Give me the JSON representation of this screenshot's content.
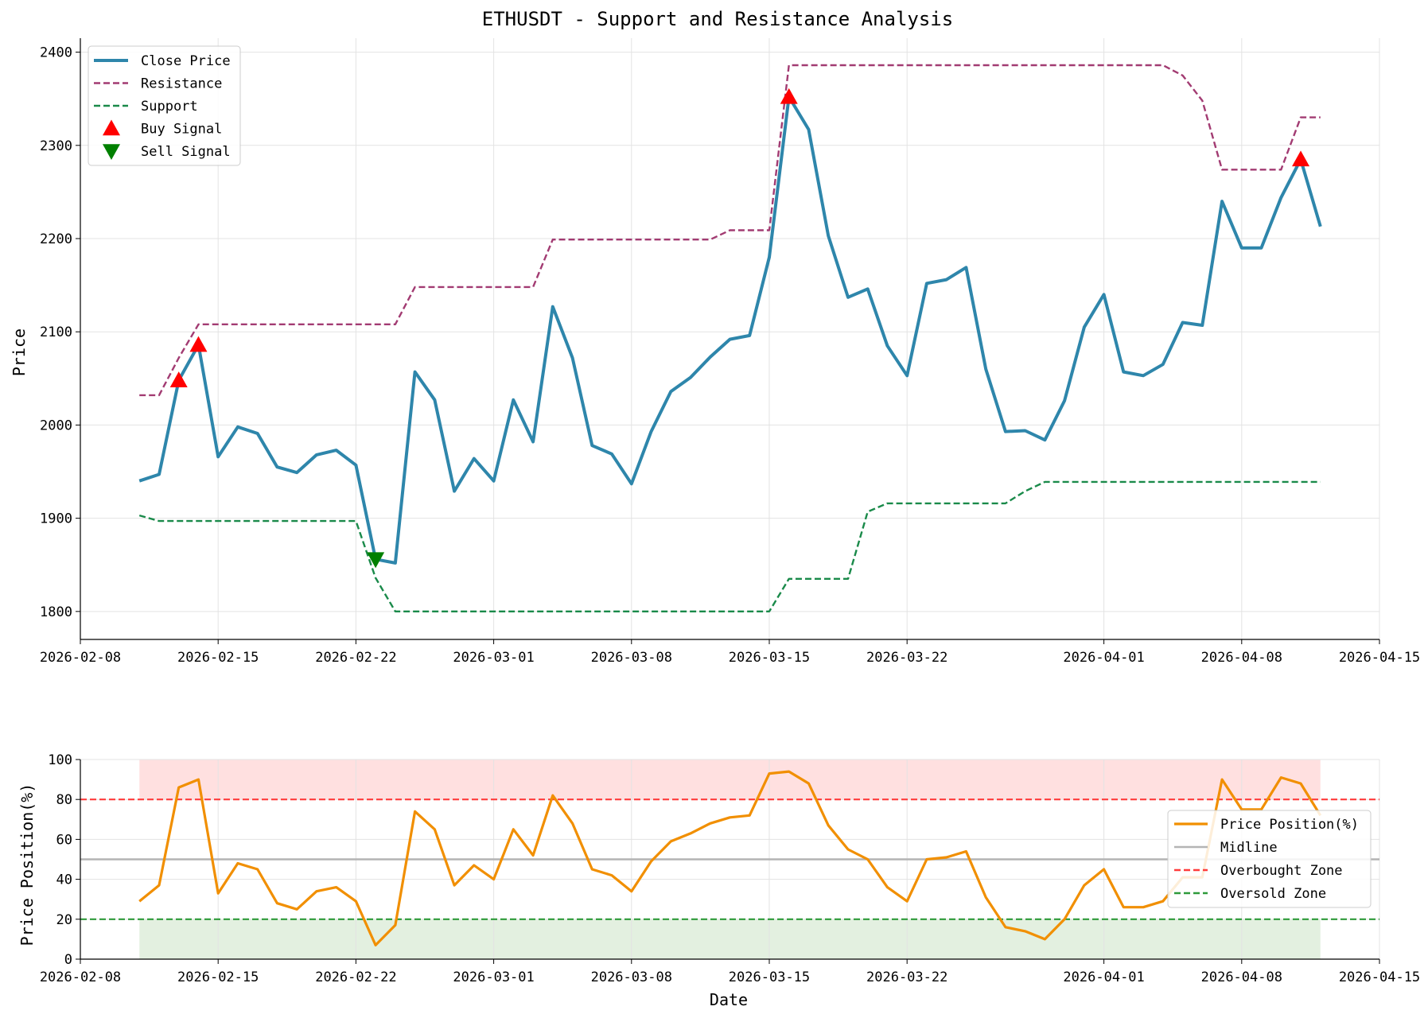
{
  "chart_data": [
    {
      "type": "line",
      "title": "ETHUSDT - Support and Resistance Analysis",
      "xlabel": "",
      "ylabel": "Price",
      "x_tick_labels": [
        "2026-02-08",
        "2026-02-15",
        "2026-02-22",
        "2026-03-01",
        "2026-03-08",
        "2026-03-15",
        "2026-03-22",
        "2026-04-01",
        "2026-04-08",
        "2026-04-15"
      ],
      "y_tick_labels": [
        "1800",
        "1900",
        "2000",
        "2100",
        "2200",
        "2300",
        "2400"
      ],
      "xlim": [
        "2026-02-08",
        "2026-04-15"
      ],
      "ylim": [
        1770,
        2415
      ],
      "grid": true,
      "legend_position": "top-left",
      "x": [
        "2026-02-11",
        "2026-02-12",
        "2026-02-13",
        "2026-02-14",
        "2026-02-15",
        "2026-02-16",
        "2026-02-17",
        "2026-02-18",
        "2026-02-19",
        "2026-02-20",
        "2026-02-21",
        "2026-02-22",
        "2026-02-23",
        "2026-02-24",
        "2026-02-25",
        "2026-02-26",
        "2026-02-27",
        "2026-02-28",
        "2026-03-01",
        "2026-03-02",
        "2026-03-03",
        "2026-03-04",
        "2026-03-05",
        "2026-03-06",
        "2026-03-07",
        "2026-03-08",
        "2026-03-09",
        "2026-03-10",
        "2026-03-11",
        "2026-03-12",
        "2026-03-13",
        "2026-03-14",
        "2026-03-15",
        "2026-03-16",
        "2026-03-17",
        "2026-03-18",
        "2026-03-19",
        "2026-03-20",
        "2026-03-21",
        "2026-03-22",
        "2026-03-23",
        "2026-03-24",
        "2026-03-25",
        "2026-03-26",
        "2026-03-27",
        "2026-03-28",
        "2026-03-29",
        "2026-03-30",
        "2026-03-31",
        "2026-04-01",
        "2026-04-02",
        "2026-04-03",
        "2026-04-04",
        "2026-04-05",
        "2026-04-06",
        "2026-04-07",
        "2026-04-08",
        "2026-04-09",
        "2026-04-10",
        "2026-04-11",
        "2026-04-12"
      ],
      "series": [
        {
          "name": "Close Price",
          "color": "#2e86ab",
          "style": "solid",
          "values": [
            1940,
            1947,
            2048,
            2086,
            1966,
            1998,
            1991,
            1955,
            1949,
            1968,
            1973,
            1957,
            1856,
            1852,
            2057,
            2027,
            1929,
            1964,
            1940,
            2027,
            1982,
            2127,
            2072,
            1978,
            1969,
            1937,
            1993,
            2036,
            2051,
            2073,
            2092,
            2096,
            2180,
            2352,
            2317,
            2203,
            2137,
            2146,
            2085,
            2053,
            2152,
            2156,
            2169,
            2060,
            1993,
            1994,
            1984,
            2026,
            2105,
            2140,
            2057,
            2053,
            2065,
            2110,
            2107,
            2240,
            2190,
            2190,
            2244,
            2285,
            2213
          ]
        },
        {
          "name": "Resistance",
          "color": "#a23b72",
          "style": "dashed",
          "values": [
            2032,
            2032,
            2072,
            2108,
            2108,
            2108,
            2108,
            2108,
            2108,
            2108,
            2108,
            2108,
            2108,
            2108,
            2148,
            2148,
            2148,
            2148,
            2148,
            2148,
            2148,
            2199,
            2199,
            2199,
            2199,
            2199,
            2199,
            2199,
            2199,
            2199,
            2209,
            2209,
            2209,
            2386,
            2386,
            2386,
            2386,
            2386,
            2386,
            2386,
            2386,
            2386,
            2386,
            2386,
            2386,
            2386,
            2386,
            2386,
            2386,
            2386,
            2386,
            2386,
            2386,
            2375,
            2348,
            2274,
            2274,
            2274,
            2274,
            2330,
            2330
          ]
        },
        {
          "name": "Support",
          "color": "#1a8a4a",
          "style": "dashed",
          "values": [
            1903,
            1897,
            1897,
            1897,
            1897,
            1897,
            1897,
            1897,
            1897,
            1897,
            1897,
            1897,
            1836,
            1800,
            1800,
            1800,
            1800,
            1800,
            1800,
            1800,
            1800,
            1800,
            1800,
            1800,
            1800,
            1800,
            1800,
            1800,
            1800,
            1800,
            1800,
            1800,
            1800,
            1835,
            1835,
            1835,
            1835,
            1907,
            1916,
            1916,
            1916,
            1916,
            1916,
            1916,
            1916,
            1929,
            1939,
            1939,
            1939,
            1939,
            1939,
            1939,
            1939,
            1939,
            1939,
            1939,
            1939,
            1939,
            1939,
            1939,
            1939
          ]
        }
      ],
      "markers": [
        {
          "name": "Buy Signal",
          "color": "#ff0000",
          "shape": "triangle-up",
          "points": [
            {
              "x": "2026-02-13",
              "y": 2048
            },
            {
              "x": "2026-02-14",
              "y": 2086
            },
            {
              "x": "2026-03-16",
              "y": 2352
            },
            {
              "x": "2026-04-11",
              "y": 2285
            }
          ]
        },
        {
          "name": "Sell Signal",
          "color": "#008000",
          "shape": "triangle-down",
          "points": [
            {
              "x": "2026-02-23",
              "y": 1856
            }
          ]
        }
      ]
    },
    {
      "type": "line",
      "title": "",
      "xlabel": "Date",
      "ylabel": "Price Position(%)",
      "x_tick_labels": [
        "2026-02-08",
        "2026-02-15",
        "2026-02-22",
        "2026-03-01",
        "2026-03-08",
        "2026-03-15",
        "2026-03-22",
        "2026-04-01",
        "2026-04-08",
        "2026-04-15"
      ],
      "y_tick_labels": [
        "0",
        "20",
        "40",
        "60",
        "80",
        "100"
      ],
      "xlim": [
        "2026-02-08",
        "2026-04-15"
      ],
      "ylim": [
        0,
        100
      ],
      "grid": true,
      "legend_position": "right",
      "series": [
        {
          "name": "Price Position(%)",
          "color": "#f18f01",
          "style": "solid",
          "values": [
            29,
            37,
            86,
            90,
            33,
            48,
            45,
            28,
            25,
            34,
            36,
            29,
            7,
            17,
            74,
            65,
            37,
            47,
            40,
            65,
            52,
            82,
            68,
            45,
            42,
            34,
            49,
            59,
            63,
            68,
            71,
            72,
            93,
            94,
            88,
            67,
            55,
            50,
            36,
            29,
            50,
            51,
            54,
            31,
            16,
            14,
            10,
            20,
            37,
            45,
            26,
            26,
            29,
            41,
            41,
            90,
            75,
            75,
            91,
            88,
            72
          ]
        },
        {
          "name": "Midline",
          "color": "#b4b4b4",
          "style": "solid",
          "constant": 50
        },
        {
          "name": "Overbought Zone",
          "color": "#ff3b3b",
          "style": "dashed",
          "constant": 80
        },
        {
          "name": "Oversold Zone",
          "color": "#2e9a3a",
          "style": "dashed",
          "constant": 20
        }
      ],
      "bands": [
        {
          "from": 80,
          "to": 100,
          "color": "#ffe0e0"
        },
        {
          "from": 0,
          "to": 20,
          "color": "#e3f0e0"
        }
      ]
    }
  ]
}
